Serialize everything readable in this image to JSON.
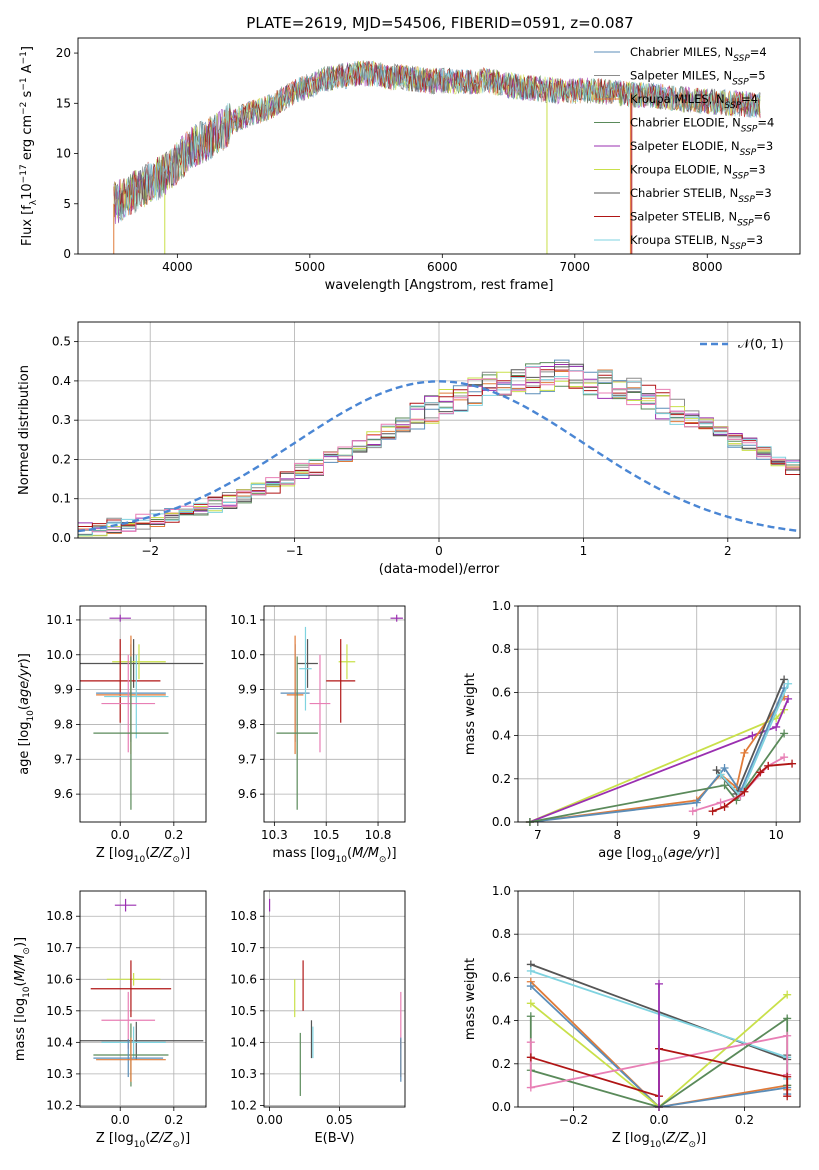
{
  "figure_title": "PLATE=2619, MJD=54506, FIBERID=0591, z=0.087",
  "colors": {
    "chabrier_miles": "#5b8db8",
    "salpeter_miles": "#8c8c8c",
    "kroupa_miles": "#e07b39",
    "chabrier_elodie": "#5a8a5a",
    "salpeter_elodie": "#9a2fb0",
    "kroupa_elodie": "#c9e04a",
    "chabrier_stelib": "#555555",
    "salpeter_stelib": "#b01515",
    "kroupa_stelib": "#7fd3e0",
    "pink": "#e87fb5",
    "normal_curve": "#4a86d4",
    "grid": "#b0b0b0"
  },
  "chart_data": [
    {
      "id": "spectrum",
      "type": "line",
      "title": "PLATE=2619, MJD=54506, FIBERID=0591, z=0.087",
      "xlabel": "wavelength [Angstrom, rest frame]",
      "ylabel": "Flux [f_λ10^−17 erg cm^−2 s^−1 A^−1]",
      "xlim": [
        3250,
        8700
      ],
      "ylim": [
        0,
        21.5
      ],
      "xticks": [
        4000,
        5000,
        6000,
        7000,
        8000
      ],
      "yticks": [
        0,
        5,
        10,
        15,
        20
      ],
      "grid": false,
      "legend_position": "top-right",
      "envelope": {
        "x": [
          3520,
          3600,
          3700,
          3800,
          3900,
          4000,
          4100,
          4200,
          4300,
          4400,
          4500,
          4600,
          4700,
          4800,
          4900,
          5000,
          5100,
          5200,
          5300,
          5400,
          5500,
          5600,
          5700,
          5800,
          5900,
          6000,
          6100,
          6200,
          6300,
          6400,
          6500,
          6600,
          6700,
          6800,
          6900,
          7000,
          7100,
          7200,
          7300,
          7400,
          7500,
          7600,
          7700,
          7800,
          7900,
          8000,
          8100,
          8200,
          8300,
          8400
        ],
        "y": [
          5.0,
          5.6,
          6.3,
          7.2,
          7.8,
          9.2,
          10.5,
          11.2,
          12.0,
          13.0,
          13.7,
          14.2,
          14.6,
          15.5,
          16.2,
          16.8,
          17.3,
          17.6,
          17.8,
          18.0,
          17.9,
          17.6,
          17.6,
          17.4,
          17.2,
          17.3,
          17.2,
          17.1,
          17.3,
          17.1,
          16.8,
          16.6,
          16.5,
          16.3,
          16.2,
          16.2,
          16.3,
          16.2,
          16.1,
          15.9,
          15.8,
          15.8,
          15.6,
          15.4,
          15.3,
          15.2,
          15.1,
          15.0,
          14.9,
          14.8
        ]
      },
      "legend": [
        {
          "name": "Chabrier MILES, N_SSP=4",
          "label": "Chabrier MILES, N",
          "n": "4",
          "color": "#5b8db8"
        },
        {
          "name": "Salpeter MILES, N_SSP=5",
          "label": "Salpeter MILES, N",
          "n": "5",
          "color": "#8c8c8c"
        },
        {
          "name": "Kroupa MILES, N_SSP=4",
          "label": "Kroupa MILES, N",
          "n": "4",
          "color": "#e07b39"
        },
        {
          "name": "Chabrier ELODIE, N_SSP=4",
          "label": "Chabrier ELODIE, N",
          "n": "4",
          "color": "#5a8a5a"
        },
        {
          "name": "Salpeter ELODIE, N_SSP=3",
          "label": "Salpeter ELODIE, N",
          "n": "3",
          "color": "#9a2fb0"
        },
        {
          "name": "Kroupa ELODIE, N_SSP=3",
          "label": "Kroupa ELODIE, N",
          "n": "3",
          "color": "#c9e04a"
        },
        {
          "name": "Chabrier STELIB, N_SSP=3",
          "label": "Chabrier STELIB, N",
          "n": "3",
          "color": "#555555"
        },
        {
          "name": "Salpeter STELIB, N_SSP=6",
          "label": "Salpeter STELIB, N",
          "n": "6",
          "color": "#b01515"
        },
        {
          "name": "Kroupa STELIB, N_SSP=3",
          "label": "Kroupa STELIB, N",
          "n": "3",
          "color": "#7fd3e0"
        }
      ],
      "legend_subscript": "SSP"
    },
    {
      "id": "residuals",
      "type": "histogram",
      "xlabel": "(data-model)/error",
      "ylabel": "Normed distribution",
      "xlim": [
        -2.5,
        2.5
      ],
      "ylim": [
        0,
        0.55
      ],
      "xticks": [
        -2,
        -1,
        0,
        1,
        2
      ],
      "yticks": [
        0.0,
        0.1,
        0.2,
        0.3,
        0.4,
        0.5
      ],
      "grid": true,
      "bin_edges_start": -2.5,
      "bin_width": 0.1,
      "mean_profile": [
        0.02,
        0.025,
        0.03,
        0.035,
        0.04,
        0.05,
        0.055,
        0.065,
        0.075,
        0.085,
        0.095,
        0.11,
        0.12,
        0.135,
        0.15,
        0.17,
        0.18,
        0.2,
        0.215,
        0.235,
        0.25,
        0.27,
        0.29,
        0.31,
        0.325,
        0.345,
        0.36,
        0.375,
        0.385,
        0.395,
        0.4,
        0.405,
        0.41,
        0.415,
        0.405,
        0.4,
        0.39,
        0.38,
        0.37,
        0.355,
        0.34,
        0.325,
        0.305,
        0.29,
        0.27,
        0.25,
        0.235,
        0.215,
        0.195,
        0.18
      ],
      "legend": [
        {
          "label": "𝒩(0, 1)",
          "color": "#4a86d4",
          "style": "dashed"
        }
      ],
      "legend_position": "top-right"
    },
    {
      "id": "age_vs_Z",
      "type": "errorbar",
      "xlabel": "Z [log10(Z/Z⊙)]",
      "ylabel": "age  [log10(age/yr)]",
      "xlim": [
        -0.15,
        0.32
      ],
      "ylim": [
        9.52,
        10.14
      ],
      "xticks": [
        0.0,
        0.2
      ],
      "yticks": [
        9.6,
        9.7,
        9.8,
        9.9,
        10.0,
        10.1
      ],
      "grid": true,
      "points": [
        {
          "x": 0.0,
          "y": 10.105,
          "xerr": 0.04,
          "yerr": 0.01,
          "color": "#9a2fb0"
        },
        {
          "x": 0.05,
          "y": 9.975,
          "xerr": 0.26,
          "yerr": 0.07,
          "color": "#555555"
        },
        {
          "x": 0.07,
          "y": 9.98,
          "xerr": 0.1,
          "yerr": 0.05,
          "color": "#c9e04a"
        },
        {
          "x": 0.0,
          "y": 9.925,
          "xerr": 0.15,
          "yerr": 0.12,
          "color": "#b01515"
        },
        {
          "x": 0.04,
          "y": 9.89,
          "xerr": 0.13,
          "yerr": 0.14,
          "color": "#5b8db8"
        },
        {
          "x": 0.04,
          "y": 9.885,
          "xerr": 0.13,
          "yerr": 0.17,
          "color": "#e07b39"
        },
        {
          "x": 0.06,
          "y": 9.88,
          "xerr": 0.12,
          "yerr": 0.12,
          "color": "#7fd3e0"
        },
        {
          "x": 0.03,
          "y": 9.86,
          "xerr": 0.1,
          "yerr": 0.14,
          "color": "#e87fb5"
        },
        {
          "x": 0.04,
          "y": 9.775,
          "xerr": 0.14,
          "yerr": 0.22,
          "color": "#5a8a5a"
        }
      ]
    },
    {
      "id": "age_vs_mass",
      "type": "errorbar",
      "xlabel": "mass [log10(M/M⊙)]",
      "ylabel": "",
      "xlim": [
        10.2,
        10.88
      ],
      "ylim": [
        9.52,
        10.14
      ],
      "xticks": [
        10.25,
        10.5,
        10.75
      ],
      "yticks": [
        9.6,
        9.7,
        9.8,
        9.9,
        10.0,
        10.1
      ],
      "grid": true,
      "points": [
        {
          "x": 10.84,
          "y": 10.105,
          "xerr": 0.03,
          "yerr": 0.01,
          "color": "#9a2fb0"
        },
        {
          "x": 10.41,
          "y": 9.975,
          "xerr": 0.05,
          "yerr": 0.07,
          "color": "#555555"
        },
        {
          "x": 10.6,
          "y": 9.98,
          "xerr": 0.04,
          "yerr": 0.05,
          "color": "#c9e04a"
        },
        {
          "x": 10.57,
          "y": 9.925,
          "xerr": 0.07,
          "yerr": 0.12,
          "color": "#b01515"
        },
        {
          "x": 10.35,
          "y": 9.89,
          "xerr": 0.07,
          "yerr": 0.14,
          "color": "#5b8db8"
        },
        {
          "x": 10.35,
          "y": 9.885,
          "xerr": 0.04,
          "yerr": 0.17,
          "color": "#e07b39"
        },
        {
          "x": 10.4,
          "y": 9.96,
          "xerr": 0.03,
          "yerr": 0.12,
          "color": "#7fd3e0"
        },
        {
          "x": 10.47,
          "y": 9.86,
          "xerr": 0.05,
          "yerr": 0.14,
          "color": "#e87fb5"
        },
        {
          "x": 10.36,
          "y": 9.775,
          "xerr": 0.1,
          "yerr": 0.22,
          "color": "#5a8a5a"
        }
      ]
    },
    {
      "id": "weight_vs_age",
      "type": "line",
      "xlabel": "age  [log10(age/yr)]",
      "ylabel": "mass weight",
      "xlim": [
        6.75,
        10.3
      ],
      "ylim": [
        0,
        1.0
      ],
      "xticks": [
        7,
        8,
        9,
        10
      ],
      "yticks": [
        0.0,
        0.2,
        0.4,
        0.6,
        0.8,
        1.0
      ],
      "grid": true,
      "series": [
        {
          "color": "#c9e04a",
          "x": [
            6.9,
            10.0,
            10.1
          ],
          "y": [
            0.0,
            0.48,
            0.52
          ]
        },
        {
          "color": "#9a2fb0",
          "x": [
            6.9,
            9.7,
            10.0,
            10.15
          ],
          "y": [
            0.0,
            0.4,
            0.44,
            0.57
          ]
        },
        {
          "color": "#e07b39",
          "x": [
            6.9,
            9.0,
            9.3,
            9.5,
            9.6,
            10.1
          ],
          "y": [
            0.0,
            0.1,
            0.22,
            0.16,
            0.32,
            0.58
          ]
        },
        {
          "color": "#5b8db8",
          "x": [
            6.9,
            9.0,
            9.35,
            9.55,
            10.1
          ],
          "y": [
            0.0,
            0.09,
            0.25,
            0.14,
            0.62
          ]
        },
        {
          "color": "#5a8a5a",
          "x": [
            6.9,
            9.35,
            9.5,
            10.1
          ],
          "y": [
            0.0,
            0.17,
            0.1,
            0.41
          ]
        },
        {
          "color": "#555555",
          "x": [
            9.25,
            9.5,
            10.1
          ],
          "y": [
            0.24,
            0.13,
            0.66
          ]
        },
        {
          "color": "#7fd3e0",
          "x": [
            9.3,
            9.55,
            10.15
          ],
          "y": [
            0.22,
            0.12,
            0.64
          ]
        },
        {
          "color": "#e87fb5",
          "x": [
            8.95,
            9.3,
            9.55,
            9.9,
            10.1
          ],
          "y": [
            0.05,
            0.09,
            0.12,
            0.26,
            0.3
          ]
        },
        {
          "color": "#b01515",
          "x": [
            9.2,
            9.35,
            9.6,
            9.8,
            9.9,
            10.2
          ],
          "y": [
            0.05,
            0.07,
            0.14,
            0.23,
            0.26,
            0.27
          ]
        }
      ]
    },
    {
      "id": "mass_vs_Z",
      "type": "errorbar",
      "xlabel": "Z [log10(Z/Z⊙)]",
      "ylabel": "mass [log10(M/M⊙)]",
      "xlim": [
        -0.15,
        0.32
      ],
      "ylim": [
        10.195,
        10.88
      ],
      "xticks": [
        0.0,
        0.2
      ],
      "yticks": [
        10.2,
        10.3,
        10.4,
        10.5,
        10.6,
        10.7,
        10.8
      ],
      "grid": true,
      "points": [
        {
          "x": 0.02,
          "y": 10.835,
          "xerr": 0.04,
          "yerr": 0.02,
          "color": "#9a2fb0"
        },
        {
          "x": 0.05,
          "y": 10.6,
          "xerr": 0.1,
          "yerr": 0.02,
          "color": "#c9e04a"
        },
        {
          "x": 0.04,
          "y": 10.57,
          "xerr": 0.15,
          "yerr": 0.09,
          "color": "#b01515"
        },
        {
          "x": 0.03,
          "y": 10.47,
          "xerr": 0.1,
          "yerr": 0.09,
          "color": "#e87fb5"
        },
        {
          "x": 0.06,
          "y": 10.405,
          "xerr": 0.25,
          "yerr": 0.06,
          "color": "#555555"
        },
        {
          "x": 0.05,
          "y": 10.4,
          "xerr": 0.12,
          "yerr": 0.05,
          "color": "#7fd3e0"
        },
        {
          "x": 0.04,
          "y": 10.36,
          "xerr": 0.14,
          "yerr": 0.1,
          "color": "#5a8a5a"
        },
        {
          "x": 0.03,
          "y": 10.35,
          "xerr": 0.13,
          "yerr": 0.06,
          "color": "#5b8db8"
        },
        {
          "x": 0.04,
          "y": 10.345,
          "xerr": 0.13,
          "yerr": 0.07,
          "color": "#e07b39"
        }
      ]
    },
    {
      "id": "mass_vs_EBV",
      "type": "errorbar",
      "xlabel": "E(B-V)",
      "ylabel": "",
      "xlim": [
        -0.004,
        0.097
      ],
      "ylim": [
        10.195,
        10.88
      ],
      "xticks": [
        0.0,
        0.05
      ],
      "yticks": [
        10.2,
        10.3,
        10.4,
        10.5,
        10.6,
        10.7,
        10.8
      ],
      "grid": true,
      "points": [
        {
          "x": 0.0,
          "y": 10.835,
          "xerr": 0.0,
          "yerr": 0.02,
          "color": "#9a2fb0"
        },
        {
          "x": 0.018,
          "y": 10.54,
          "xerr": 0.0,
          "yerr": 0.06,
          "color": "#c9e04a"
        },
        {
          "x": 0.024,
          "y": 10.58,
          "xerr": 0.0,
          "yerr": 0.08,
          "color": "#b01515"
        },
        {
          "x": 0.022,
          "y": 10.33,
          "xerr": 0.0,
          "yerr": 0.1,
          "color": "#5a8a5a"
        },
        {
          "x": 0.03,
          "y": 10.41,
          "xerr": 0.0,
          "yerr": 0.06,
          "color": "#555555"
        },
        {
          "x": 0.031,
          "y": 10.4,
          "xerr": 0.0,
          "yerr": 0.05,
          "color": "#7fd3e0"
        },
        {
          "x": 0.094,
          "y": 10.47,
          "xerr": 0.0,
          "yerr": 0.09,
          "color": "#e87fb5"
        },
        {
          "x": 0.094,
          "y": 10.35,
          "xerr": 0.0,
          "yerr": 0.06,
          "color": "#e07b39"
        },
        {
          "x": 0.094,
          "y": 10.345,
          "xerr": 0.0,
          "yerr": 0.07,
          "color": "#5b8db8"
        }
      ]
    },
    {
      "id": "weight_vs_Z",
      "type": "line",
      "xlabel": "Z [log10(Z/Z⊙)]",
      "ylabel": "mass weight",
      "xlim": [
        -0.33,
        0.33
      ],
      "ylim": [
        0,
        1.0
      ],
      "xticks": [
        -0.2,
        0.0,
        0.2
      ],
      "yticks": [
        0.0,
        0.2,
        0.4,
        0.6,
        0.8,
        1.0
      ],
      "grid": true,
      "series": [
        {
          "color": "#555555",
          "x": [
            -0.3,
            0.3,
            0.3
          ],
          "y": [
            0.66,
            0.22,
            0.24
          ]
        },
        {
          "color": "#7fd3e0",
          "x": [
            -0.3,
            0.3,
            0.3
          ],
          "y": [
            0.63,
            0.23,
            0.13
          ]
        },
        {
          "color": "#e07b39",
          "x": [
            -0.3,
            0.0,
            0.3,
            0.3
          ],
          "y": [
            0.58,
            0.0,
            0.1,
            0.08
          ]
        },
        {
          "color": "#5b8db8",
          "x": [
            -0.3,
            0.0,
            0.3,
            0.3
          ],
          "y": [
            0.56,
            0.0,
            0.09,
            0.06
          ]
        },
        {
          "color": "#c9e04a",
          "x": [
            -0.3,
            0.0,
            0.3
          ],
          "y": [
            0.48,
            0.0,
            0.52
          ]
        },
        {
          "color": "#5a8a5a",
          "x": [
            -0.3,
            -0.3,
            0.0,
            0.3,
            0.3
          ],
          "y": [
            0.42,
            0.17,
            0.0,
            0.41,
            0.1
          ]
        },
        {
          "color": "#e87fb5",
          "x": [
            -0.3,
            -0.3,
            0.3,
            0.3
          ],
          "y": [
            0.3,
            0.09,
            0.33,
            0.15
          ]
        },
        {
          "color": "#b01515",
          "x": [
            -0.3,
            0.0,
            0.0,
            0.3,
            0.3
          ],
          "y": [
            0.23,
            0.05,
            0.27,
            0.14,
            0.05
          ]
        },
        {
          "color": "#9a2fb0",
          "x": [
            0.0,
            0.0
          ],
          "y": [
            0.0,
            0.57
          ]
        }
      ]
    }
  ]
}
